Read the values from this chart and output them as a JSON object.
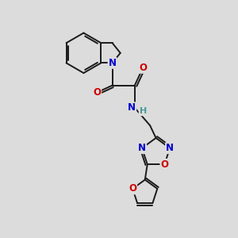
{
  "bg_color": "#dcdcdc",
  "bond_color": "#1a1a1a",
  "nitrogen_color": "#0000cc",
  "oxygen_color": "#cc0000",
  "hydrogen_color": "#4a9a9a",
  "bond_width": 1.4,
  "figsize": [
    3.0,
    3.0
  ],
  "dpi": 100,
  "xlim": [
    0,
    10
  ],
  "ylim": [
    0,
    10
  ]
}
